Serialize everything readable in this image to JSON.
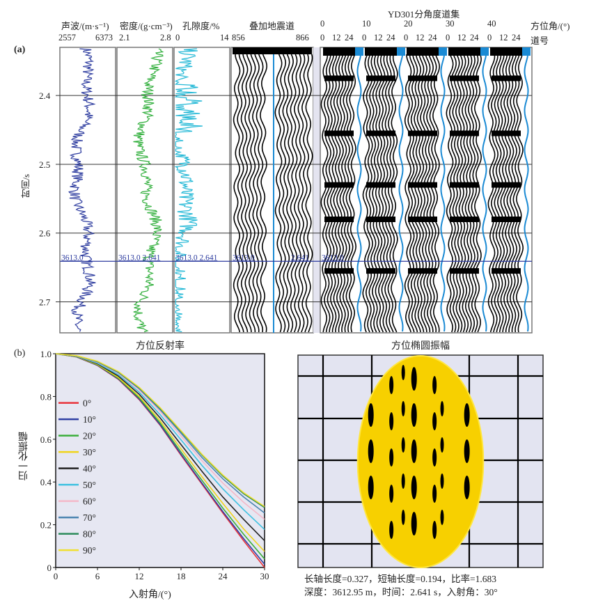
{
  "panel_a": {
    "label": "(a)",
    "time_axis": {
      "label": "时间/s",
      "ticks": [
        "2.4",
        "2.5",
        "2.6",
        "2.7"
      ],
      "range": [
        2.33,
        2.745
      ]
    },
    "tracks": [
      {
        "title": "声波/(m·s⁻¹)",
        "min_label": "2557",
        "max_label": "6373",
        "color": "#2b3a9e",
        "marker": "3613.0"
      },
      {
        "title": "密度/(g·cm⁻³)",
        "min_label": "2.1",
        "max_label": "2.8",
        "color": "#2fae3a",
        "marker": "3613.0 2.641"
      },
      {
        "title": "孔隙度/%",
        "min_label": "0",
        "max_label": "14",
        "color": "#22b8d6",
        "marker": "3613.0  2.641"
      }
    ],
    "stack": {
      "title": "叠加地震道",
      "min_label": "856",
      "max_label": "866",
      "marker_left": "3613.0",
      "marker_right": "2.641"
    },
    "gather": {
      "title": "YD301分角度道集",
      "azimuth_label": "方位角/(°)",
      "trace_label": "道号",
      "azimuths": [
        "0",
        "10",
        "20",
        "30",
        "40"
      ],
      "trace_ticks": [
        "0",
        "12",
        "24"
      ],
      "marker": "3613.0",
      "highlight_color": "#1a8ad4"
    },
    "marker_time": 2.641
  },
  "panel_b": {
    "label": "(b)",
    "chart_data": [
      {
        "type": "line",
        "title": "方位反射率",
        "xlabel": "入射角/(°)",
        "ylabel": "归一化振幅",
        "xlim": [
          0,
          30
        ],
        "ylim": [
          0,
          1.0
        ],
        "xticks": [
          "0",
          "6",
          "12",
          "18",
          "24",
          "30"
        ],
        "yticks": [
          "0",
          "0.2",
          "0.4",
          "0.6",
          "0.8",
          "1.0"
        ],
        "legend_position": "left",
        "x": [
          0,
          3,
          6,
          9,
          12,
          15,
          18,
          21,
          24,
          27,
          30
        ],
        "series": [
          {
            "name": "0°",
            "color": "#e8323a",
            "values": [
              1.0,
              0.985,
              0.945,
              0.88,
              0.785,
              0.665,
              0.525,
              0.39,
              0.255,
              0.125,
              0.0
            ]
          },
          {
            "name": "10°",
            "color": "#2f3ea3",
            "values": [
              1.0,
              0.985,
              0.946,
              0.882,
              0.788,
              0.668,
              0.53,
              0.395,
              0.262,
              0.135,
              0.015
            ]
          },
          {
            "name": "20°",
            "color": "#3aae3a",
            "values": [
              1.0,
              0.986,
              0.948,
              0.885,
              0.793,
              0.676,
              0.54,
              0.408,
              0.278,
              0.155,
              0.04
            ]
          },
          {
            "name": "30°",
            "color": "#f0d41a",
            "values": [
              1.0,
              0.986,
              0.95,
              0.889,
              0.8,
              0.686,
              0.555,
              0.425,
              0.3,
              0.18,
              0.075
            ]
          },
          {
            "name": "40°",
            "color": "#222222",
            "values": [
              1.0,
              0.987,
              0.953,
              0.895,
              0.81,
              0.7,
              0.575,
              0.45,
              0.33,
              0.225,
              0.125
            ]
          },
          {
            "name": "50°",
            "color": "#3ec1e0",
            "values": [
              1.0,
              0.988,
              0.956,
              0.902,
              0.82,
              0.715,
              0.597,
              0.478,
              0.368,
              0.27,
              0.178
            ]
          },
          {
            "name": "60°",
            "color": "#f4b8c8",
            "values": [
              1.0,
              0.989,
              0.96,
              0.908,
              0.83,
              0.73,
              0.615,
              0.5,
              0.395,
              0.305,
              0.225
            ]
          },
          {
            "name": "70°",
            "color": "#4a84b0",
            "values": [
              1.0,
              0.99,
              0.962,
              0.912,
              0.836,
              0.738,
              0.628,
              0.515,
              0.415,
              0.33,
              0.255
            ]
          },
          {
            "name": "80°",
            "color": "#2a8a5a",
            "values": [
              1.0,
              0.99,
              0.964,
              0.915,
              0.84,
              0.744,
              0.636,
              0.526,
              0.428,
              0.345,
              0.28
            ]
          },
          {
            "name": "90°",
            "color": "#f0e030",
            "values": [
              1.0,
              0.991,
              0.965,
              0.917,
              0.843,
              0.748,
              0.64,
              0.53,
              0.433,
              0.35,
              0.285
            ]
          }
        ]
      },
      {
        "type": "heatmap",
        "title": "方位椭圆振幅",
        "ellipse": {
          "major_axis": 0.327,
          "minor_axis": 0.194,
          "ratio": 1.683
        },
        "fill_color": "#f7d000"
      }
    ],
    "caption_line1": "长轴长度=0.327，短轴长度=0.194，比率=1.683",
    "caption_line2": "深度：3612.95 m，时间：2.641 s，入射角：30°"
  }
}
